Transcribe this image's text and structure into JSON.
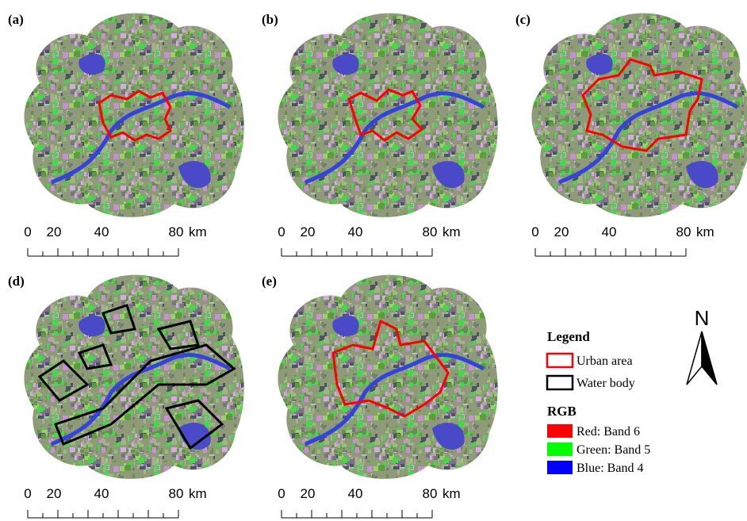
{
  "panels": [
    {
      "label": "(a)"
    },
    {
      "label": "(b)"
    },
    {
      "label": "(c)"
    },
    {
      "label": "(d)"
    },
    {
      "label": "(e)"
    }
  ],
  "scale_bar": {
    "ticks": [
      0,
      20,
      40,
      80
    ],
    "unit": "km"
  },
  "legend": {
    "title": "Legend",
    "items": [
      "Urban area",
      "Water body"
    ],
    "rgb_title": "RGB",
    "rgb_items": [
      "Red: Band 6",
      "Green: Band 5",
      "Blue: Band 4"
    ]
  },
  "north_arrow": "N"
}
